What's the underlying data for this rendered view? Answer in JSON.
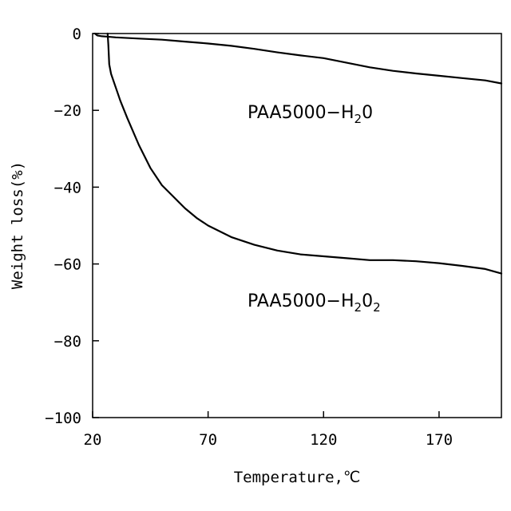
{
  "chart_data": {
    "type": "line",
    "title": "",
    "xlabel": "Temperature,℃",
    "ylabel": "Weight loss(%)",
    "xlim": [
      20,
      197
    ],
    "ylim": [
      -100,
      0
    ],
    "x_ticks": [
      20,
      70,
      120,
      170
    ],
    "y_ticks": [
      0,
      -20,
      -40,
      -60,
      -80,
      -100
    ],
    "grid": false,
    "legend": "none",
    "series": [
      {
        "name": "PAA5000-H2O",
        "label_main": "PAA5000−H",
        "label_sub1": "2",
        "label_rest": "0",
        "label_sub2": "",
        "points": [
          [
            21,
            0
          ],
          [
            22,
            -0.5
          ],
          [
            24,
            -0.7
          ],
          [
            26,
            -0.8
          ],
          [
            30,
            -1.0
          ],
          [
            40,
            -1.3
          ],
          [
            50,
            -1.6
          ],
          [
            60,
            -2.1
          ],
          [
            70,
            -2.6
          ],
          [
            80,
            -3.2
          ],
          [
            90,
            -4.0
          ],
          [
            100,
            -4.9
          ],
          [
            110,
            -5.7
          ],
          [
            120,
            -6.4
          ],
          [
            130,
            -7.6
          ],
          [
            140,
            -8.8
          ],
          [
            150,
            -9.7
          ],
          [
            160,
            -10.4
          ],
          [
            170,
            -11.0
          ],
          [
            180,
            -11.6
          ],
          [
            190,
            -12.2
          ],
          [
            197,
            -13.0
          ]
        ]
      },
      {
        "name": "PAA5000-H2O2",
        "label_main": "PAA5000−H",
        "label_sub1": "2",
        "label_rest": "0",
        "label_sub2": "2",
        "points": [
          [
            26.5,
            0
          ],
          [
            26.8,
            -3
          ],
          [
            27.2,
            -8
          ],
          [
            28,
            -10.5
          ],
          [
            30,
            -14
          ],
          [
            32,
            -17.5
          ],
          [
            35,
            -22
          ],
          [
            40,
            -29
          ],
          [
            45,
            -35
          ],
          [
            50,
            -39.5
          ],
          [
            55,
            -42.5
          ],
          [
            60,
            -45.5
          ],
          [
            65,
            -48
          ],
          [
            70,
            -50
          ],
          [
            80,
            -53
          ],
          [
            90,
            -55
          ],
          [
            100,
            -56.5
          ],
          [
            110,
            -57.5
          ],
          [
            120,
            -58
          ],
          [
            130,
            -58.5
          ],
          [
            140,
            -59
          ],
          [
            150,
            -59
          ],
          [
            160,
            -59.3
          ],
          [
            170,
            -59.8
          ],
          [
            180,
            -60.5
          ],
          [
            190,
            -61.3
          ],
          [
            197,
            -62.5
          ]
        ]
      }
    ]
  }
}
